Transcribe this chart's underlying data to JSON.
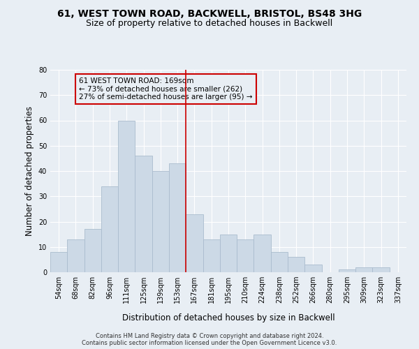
{
  "title": "61, WEST TOWN ROAD, BACKWELL, BRISTOL, BS48 3HG",
  "subtitle": "Size of property relative to detached houses in Backwell",
  "xlabel": "Distribution of detached houses by size in Backwell",
  "ylabel": "Number of detached properties",
  "bar_labels": [
    "54sqm",
    "68sqm",
    "82sqm",
    "96sqm",
    "111sqm",
    "125sqm",
    "139sqm",
    "153sqm",
    "167sqm",
    "181sqm",
    "195sqm",
    "210sqm",
    "224sqm",
    "238sqm",
    "252sqm",
    "266sqm",
    "280sqm",
    "295sqm",
    "309sqm",
    "323sqm",
    "337sqm"
  ],
  "bar_values": [
    8,
    13,
    17,
    34,
    60,
    46,
    40,
    43,
    23,
    13,
    15,
    13,
    15,
    8,
    6,
    3,
    0,
    1,
    2,
    2,
    0
  ],
  "bar_color": "#ccd9e6",
  "bar_edgecolor": "#aabcce",
  "vline_color": "#cc0000",
  "vline_x_index": 8,
  "annotation_text": "61 WEST TOWN ROAD: 169sqm\n← 73% of detached houses are smaller (262)\n27% of semi-detached houses are larger (95) →",
  "annotation_box_color": "#cc0000",
  "ylim": [
    0,
    80
  ],
  "yticks": [
    0,
    10,
    20,
    30,
    40,
    50,
    60,
    70,
    80
  ],
  "footer1": "Contains HM Land Registry data © Crown copyright and database right 2024.",
  "footer2": "Contains public sector information licensed under the Open Government Licence v3.0.",
  "background_color": "#e8eef4",
  "grid_color": "#ffffff",
  "title_fontsize": 10,
  "subtitle_fontsize": 9,
  "axis_label_fontsize": 8.5,
  "tick_fontsize": 7,
  "footer_fontsize": 6,
  "annotation_fontsize": 7.5
}
